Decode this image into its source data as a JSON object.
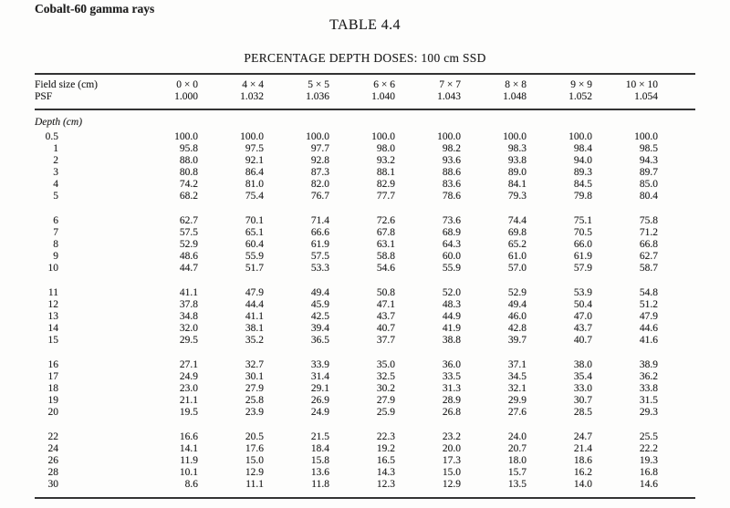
{
  "page": {
    "heading": "Cobalt-60 gamma rays",
    "title": "TABLE 4.4",
    "subtitle": "PERCENTAGE DEPTH DOSES: 100 cm SSD"
  },
  "table": {
    "field_size_label": "Field size (cm)",
    "psf_label": "PSF",
    "depth_label": "Depth (cm)",
    "columns": [
      "0 × 0",
      "4 × 4",
      "5 × 5",
      "6 × 6",
      "7 × 7",
      "8 × 8",
      "9 × 9",
      "10 × 10"
    ],
    "psf_values": [
      "1.000",
      "1.032",
      "1.036",
      "1.040",
      "1.043",
      "1.048",
      "1.052",
      "1.054"
    ],
    "groups": [
      {
        "rows": [
          {
            "depth": "0.5",
            "values": [
              "100.0",
              "100.0",
              "100.0",
              "100.0",
              "100.0",
              "100.0",
              "100.0",
              "100.0"
            ]
          },
          {
            "depth": "1",
            "values": [
              "95.8",
              "97.5",
              "97.7",
              "98.0",
              "98.2",
              "98.3",
              "98.4",
              "98.5"
            ]
          },
          {
            "depth": "2",
            "values": [
              "88.0",
              "92.1",
              "92.8",
              "93.2",
              "93.6",
              "93.8",
              "94.0",
              "94.3"
            ]
          },
          {
            "depth": "3",
            "values": [
              "80.8",
              "86.4",
              "87.3",
              "88.1",
              "88.6",
              "89.0",
              "89.3",
              "89.7"
            ]
          },
          {
            "depth": "4",
            "values": [
              "74.2",
              "81.0",
              "82.0",
              "82.9",
              "83.6",
              "84.1",
              "84.5",
              "85.0"
            ]
          },
          {
            "depth": "5",
            "values": [
              "68.2",
              "75.4",
              "76.7",
              "77.7",
              "78.6",
              "79.3",
              "79.8",
              "80.4"
            ]
          }
        ]
      },
      {
        "rows": [
          {
            "depth": "6",
            "values": [
              "62.7",
              "70.1",
              "71.4",
              "72.6",
              "73.6",
              "74.4",
              "75.1",
              "75.8"
            ]
          },
          {
            "depth": "7",
            "values": [
              "57.5",
              "65.1",
              "66.6",
              "67.8",
              "68.9",
              "69.8",
              "70.5",
              "71.2"
            ]
          },
          {
            "depth": "8",
            "values": [
              "52.9",
              "60.4",
              "61.9",
              "63.1",
              "64.3",
              "65.2",
              "66.0",
              "66.8"
            ]
          },
          {
            "depth": "9",
            "values": [
              "48.6",
              "55.9",
              "57.5",
              "58.8",
              "60.0",
              "61.0",
              "61.9",
              "62.7"
            ]
          },
          {
            "depth": "10",
            "values": [
              "44.7",
              "51.7",
              "53.3",
              "54.6",
              "55.9",
              "57.0",
              "57.9",
              "58.7"
            ]
          }
        ]
      },
      {
        "rows": [
          {
            "depth": "11",
            "values": [
              "41.1",
              "47.9",
              "49.4",
              "50.8",
              "52.0",
              "52.9",
              "53.9",
              "54.8"
            ]
          },
          {
            "depth": "12",
            "values": [
              "37.8",
              "44.4",
              "45.9",
              "47.1",
              "48.3",
              "49.4",
              "50.4",
              "51.2"
            ]
          },
          {
            "depth": "13",
            "values": [
              "34.8",
              "41.1",
              "42.5",
              "43.7",
              "44.9",
              "46.0",
              "47.0",
              "47.9"
            ]
          },
          {
            "depth": "14",
            "values": [
              "32.0",
              "38.1",
              "39.4",
              "40.7",
              "41.9",
              "42.8",
              "43.7",
              "44.6"
            ]
          },
          {
            "depth": "15",
            "values": [
              "29.5",
              "35.2",
              "36.5",
              "37.7",
              "38.8",
              "39.7",
              "40.7",
              "41.6"
            ]
          }
        ]
      },
      {
        "rows": [
          {
            "depth": "16",
            "values": [
              "27.1",
              "32.7",
              "33.9",
              "35.0",
              "36.0",
              "37.1",
              "38.0",
              "38.9"
            ]
          },
          {
            "depth": "17",
            "values": [
              "24.9",
              "30.1",
              "31.4",
              "32.5",
              "33.5",
              "34.5",
              "35.4",
              "36.2"
            ]
          },
          {
            "depth": "18",
            "values": [
              "23.0",
              "27.9",
              "29.1",
              "30.2",
              "31.3",
              "32.1",
              "33.0",
              "33.8"
            ]
          },
          {
            "depth": "19",
            "values": [
              "21.1",
              "25.8",
              "26.9",
              "27.9",
              "28.9",
              "29.9",
              "30.7",
              "31.5"
            ]
          },
          {
            "depth": "20",
            "values": [
              "19.5",
              "23.9",
              "24.9",
              "25.9",
              "26.8",
              "27.6",
              "28.5",
              "29.3"
            ]
          }
        ]
      },
      {
        "rows": [
          {
            "depth": "22",
            "values": [
              "16.6",
              "20.5",
              "21.5",
              "22.3",
              "23.2",
              "24.0",
              "24.7",
              "25.5"
            ]
          },
          {
            "depth": "24",
            "values": [
              "14.1",
              "17.6",
              "18.4",
              "19.2",
              "20.0",
              "20.7",
              "21.4",
              "22.2"
            ]
          },
          {
            "depth": "26",
            "values": [
              "11.9",
              "15.0",
              "15.8",
              "16.5",
              "17.3",
              "18.0",
              "18.6",
              "19.3"
            ]
          },
          {
            "depth": "28",
            "values": [
              "10.1",
              "12.9",
              "13.6",
              "14.3",
              "15.0",
              "15.7",
              "16.2",
              "16.8"
            ]
          },
          {
            "depth": "30",
            "values": [
              "8.6",
              "11.1",
              "11.8",
              "12.3",
              "12.9",
              "13.5",
              "14.0",
              "14.6"
            ]
          }
        ]
      }
    ]
  }
}
